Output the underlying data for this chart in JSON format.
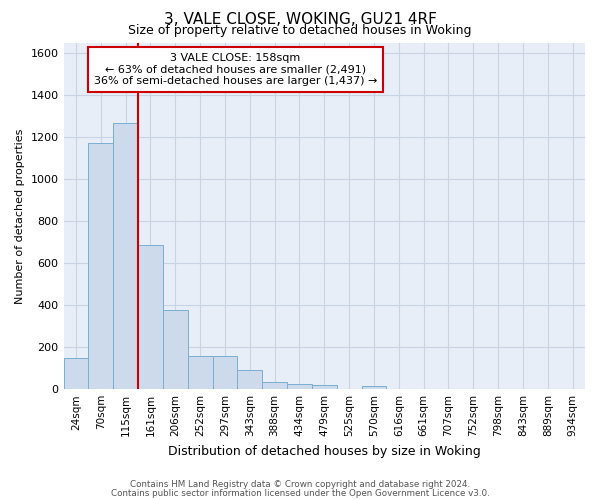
{
  "title1": "3, VALE CLOSE, WOKING, GU21 4RF",
  "title2": "Size of property relative to detached houses in Woking",
  "xlabel": "Distribution of detached houses by size in Woking",
  "ylabel": "Number of detached properties",
  "footer1": "Contains HM Land Registry data © Crown copyright and database right 2024.",
  "footer2": "Contains public sector information licensed under the Open Government Licence v3.0.",
  "categories": [
    "24sqm",
    "70sqm",
    "115sqm",
    "161sqm",
    "206sqm",
    "252sqm",
    "297sqm",
    "343sqm",
    "388sqm",
    "434sqm",
    "479sqm",
    "525sqm",
    "570sqm",
    "616sqm",
    "661sqm",
    "707sqm",
    "752sqm",
    "798sqm",
    "843sqm",
    "889sqm",
    "934sqm"
  ],
  "values": [
    150,
    1170,
    1265,
    685,
    375,
    160,
    160,
    90,
    35,
    25,
    20,
    0,
    15,
    0,
    0,
    0,
    0,
    0,
    0,
    0,
    0
  ],
  "bar_color": "#ccdaeb",
  "bar_edge_color": "#7aaed0",
  "vline_color": "#cc0000",
  "vline_pos": 2.5,
  "annotation_line1": "3 VALE CLOSE: 158sqm",
  "annotation_line2": "← 63% of detached houses are smaller (2,491)",
  "annotation_line3": "36% of semi-detached houses are larger (1,437) →",
  "annotation_box_color": "#cc0000",
  "ylim": [
    0,
    1650
  ],
  "yticks": [
    0,
    200,
    400,
    600,
    800,
    1000,
    1200,
    1400,
    1600
  ],
  "grid_color": "#c8d4e4",
  "bg_color": "#e8eef8",
  "title1_fontsize": 11,
  "title2_fontsize": 9,
  "ylabel_fontsize": 8,
  "xlabel_fontsize": 9
}
